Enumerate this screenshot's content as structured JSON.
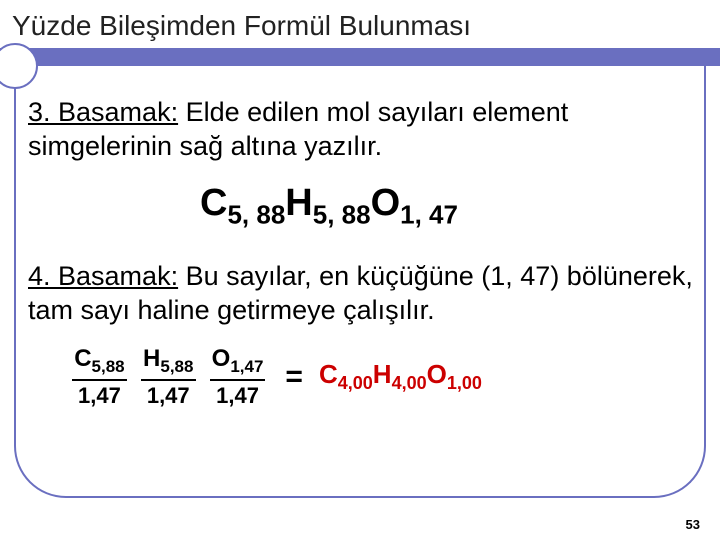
{
  "title": "Yüzde Bileşimden Formül Bulunması",
  "step3": {
    "label": "3. Basamak:",
    "text": " Elde edilen mol sayıları element simgelerinin sağ altına yazılır."
  },
  "formula1": {
    "e1": "C",
    "s1": "5, 88",
    "e2": "H",
    "s2": "5, 88",
    "e3": "O",
    "s3": "1, 47"
  },
  "step4": {
    "label": "4. Basamak:",
    "text": " Bu sayılar, en küçüğüne (1, 47) bölünerek, tam sayı haline getirmeye çalışılır."
  },
  "eq": {
    "f1": {
      "nume": "C",
      "nums": "5,88",
      "den": "1,47"
    },
    "f2": {
      "nume": "H",
      "nums": "5,88",
      "den": "1,47"
    },
    "f3": {
      "nume": "O",
      "nums": "1,47",
      "den": "1,47"
    },
    "equals": "=",
    "res": {
      "e1": "C",
      "s1": "4,00",
      "e2": "H",
      "s2": "4,00",
      "e3": "O",
      "s3": "1,00"
    }
  },
  "pagenum": "53",
  "colors": {
    "band": "#6a6fc0",
    "result": "#cc0000"
  }
}
